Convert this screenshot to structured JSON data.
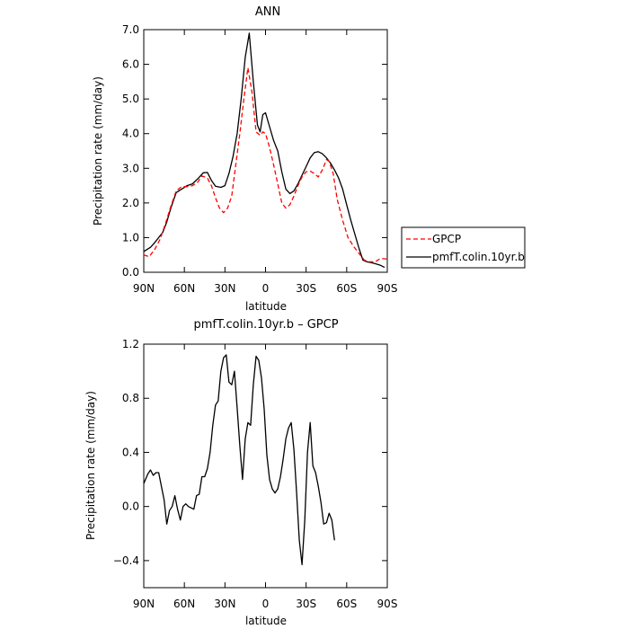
{
  "chart_data": [
    {
      "type": "line",
      "title": "ANN",
      "xlabel": "latitude",
      "ylabel": "Precipitation rate (mm/day)",
      "xlim": [
        90,
        -90
      ],
      "ylim": [
        0,
        7
      ],
      "xticks": [
        {
          "value": 90,
          "label": "90N"
        },
        {
          "value": 60,
          "label": "60N"
        },
        {
          "value": 30,
          "label": "30N"
        },
        {
          "value": 0,
          "label": "0"
        },
        {
          "value": -30,
          "label": "30S"
        },
        {
          "value": -60,
          "label": "60S"
        },
        {
          "value": -90,
          "label": "90S"
        }
      ],
      "yticks": [
        {
          "value": 0,
          "label": "0.0"
        },
        {
          "value": 1,
          "label": "1.0"
        },
        {
          "value": 2,
          "label": "2.0"
        },
        {
          "value": 3,
          "label": "3.0"
        },
        {
          "value": 4,
          "label": "4.0"
        },
        {
          "value": 5,
          "label": "5.0"
        },
        {
          "value": 6,
          "label": "6.0"
        },
        {
          "value": 7,
          "label": "7.0"
        }
      ],
      "legend": {
        "placement": "right",
        "entries": [
          {
            "name": "GPCP",
            "color": "#ff0000",
            "dash": "dashed"
          },
          {
            "name": "pmfT.colin.10yr.b",
            "color": "#000000",
            "dash": "solid"
          }
        ]
      },
      "series": [
        {
          "name": "pmfT.colin.10yr.b",
          "color": "#000000",
          "dash": "solid",
          "points": [
            [
              90,
              0.6
            ],
            [
              85,
              0.72
            ],
            [
              82,
              0.85
            ],
            [
              79,
              1.0
            ],
            [
              76,
              1.15
            ],
            [
              73,
              1.45
            ],
            [
              70,
              1.85
            ],
            [
              66,
              2.3
            ],
            [
              62,
              2.4
            ],
            [
              58,
              2.5
            ],
            [
              54,
              2.55
            ],
            [
              50,
              2.7
            ],
            [
              46,
              2.87
            ],
            [
              43,
              2.88
            ],
            [
              40,
              2.65
            ],
            [
              37,
              2.48
            ],
            [
              33,
              2.45
            ],
            [
              30,
              2.5
            ],
            [
              27,
              2.85
            ],
            [
              24,
              3.35
            ],
            [
              21,
              4.0
            ],
            [
              18,
              5.0
            ],
            [
              15,
              6.2
            ],
            [
              12,
              6.9
            ],
            [
              9,
              5.5
            ],
            [
              6,
              4.25
            ],
            [
              4,
              4.05
            ],
            [
              2,
              4.55
            ],
            [
              0,
              4.6
            ],
            [
              -3,
              4.2
            ],
            [
              -6,
              3.8
            ],
            [
              -9,
              3.5
            ],
            [
              -12,
              2.9
            ],
            [
              -15,
              2.4
            ],
            [
              -18,
              2.27
            ],
            [
              -21,
              2.35
            ],
            [
              -24,
              2.55
            ],
            [
              -27,
              2.8
            ],
            [
              -30,
              3.05
            ],
            [
              -33,
              3.3
            ],
            [
              -36,
              3.45
            ],
            [
              -39,
              3.48
            ],
            [
              -42,
              3.42
            ],
            [
              -45,
              3.3
            ],
            [
              -48,
              3.15
            ],
            [
              -51,
              2.95
            ],
            [
              -54,
              2.72
            ],
            [
              -57,
              2.4
            ],
            [
              -60,
              1.95
            ],
            [
              -63,
              1.5
            ],
            [
              -66,
              1.1
            ],
            [
              -69,
              0.7
            ],
            [
              -72,
              0.35
            ],
            [
              -75,
              0.3
            ],
            [
              -78,
              0.28
            ],
            [
              -81,
              0.25
            ],
            [
              -85,
              0.2
            ],
            [
              -88,
              0.14
            ]
          ]
        },
        {
          "name": "GPCP",
          "color": "#ff0000",
          "dash": "dashed",
          "points": [
            [
              90,
              0.5
            ],
            [
              86,
              0.45
            ],
            [
              82,
              0.65
            ],
            [
              78,
              0.95
            ],
            [
              74,
              1.4
            ],
            [
              70,
              1.9
            ],
            [
              66,
              2.35
            ],
            [
              62,
              2.47
            ],
            [
              58,
              2.47
            ],
            [
              54,
              2.5
            ],
            [
              50,
              2.6
            ],
            [
              47,
              2.78
            ],
            [
              43,
              2.72
            ],
            [
              40,
              2.5
            ],
            [
              37,
              2.15
            ],
            [
              34,
              1.85
            ],
            [
              31,
              1.72
            ],
            [
              28,
              1.85
            ],
            [
              25,
              2.2
            ],
            [
              22,
              3.1
            ],
            [
              19,
              4.0
            ],
            [
              16,
              5.0
            ],
            [
              13,
              5.9
            ],
            [
              10,
              5.2
            ],
            [
              7,
              4.05
            ],
            [
              4,
              3.95
            ],
            [
              2,
              4.05
            ],
            [
              0,
              4.0
            ],
            [
              -3,
              3.6
            ],
            [
              -6,
              3.1
            ],
            [
              -9,
              2.55
            ],
            [
              -12,
              2.0
            ],
            [
              -15,
              1.85
            ],
            [
              -18,
              1.95
            ],
            [
              -21,
              2.2
            ],
            [
              -24,
              2.5
            ],
            [
              -27,
              2.75
            ],
            [
              -30,
              2.9
            ],
            [
              -33,
              2.92
            ],
            [
              -36,
              2.85
            ],
            [
              -39,
              2.75
            ],
            [
              -42,
              2.95
            ],
            [
              -45,
              3.25
            ],
            [
              -47,
              3.2
            ],
            [
              -50,
              2.85
            ],
            [
              -53,
              2.1
            ],
            [
              -57,
              1.5
            ],
            [
              -61,
              1.0
            ],
            [
              -65,
              0.75
            ],
            [
              -69,
              0.55
            ],
            [
              -73,
              0.35
            ],
            [
              -77,
              0.3
            ],
            [
              -81,
              0.3
            ],
            [
              -85,
              0.4
            ],
            [
              -90,
              0.38
            ]
          ]
        }
      ]
    },
    {
      "type": "line",
      "title": "pmfT.colin.10yr.b – GPCP",
      "xlabel": "latitude",
      "ylabel": "Precipitation rate (mm/day)",
      "xlim": [
        90,
        -90
      ],
      "ylim": [
        -0.6,
        1.2
      ],
      "xticks": [
        {
          "value": 90,
          "label": "90N"
        },
        {
          "value": 60,
          "label": "60N"
        },
        {
          "value": 30,
          "label": "30N"
        },
        {
          "value": 0,
          "label": "0"
        },
        {
          "value": -30,
          "label": "30S"
        },
        {
          "value": -60,
          "label": "60S"
        },
        {
          "value": -90,
          "label": "90S"
        }
      ],
      "yticks": [
        {
          "value": -0.4,
          "label": "−0.4"
        },
        {
          "value": 0.0,
          "label": "0.0"
        },
        {
          "value": 0.4,
          "label": "0.4"
        },
        {
          "value": 0.8,
          "label": "0.8"
        },
        {
          "value": 1.2,
          "label": "1.2"
        }
      ],
      "series": [
        {
          "color": "#000000",
          "dash": "solid",
          "points": [
            [
              90,
              0.17
            ],
            [
              87,
              0.24
            ],
            [
              85,
              0.27
            ],
            [
              83,
              0.23
            ],
            [
              81,
              0.25
            ],
            [
              79,
              0.25
            ],
            [
              77,
              0.15
            ],
            [
              75,
              0.05
            ],
            [
              73,
              -0.13
            ],
            [
              71,
              -0.03
            ],
            [
              69,
              0.0
            ],
            [
              67,
              0.08
            ],
            [
              65,
              -0.02
            ],
            [
              63,
              -0.1
            ],
            [
              61,
              0.0
            ],
            [
              59,
              0.02
            ],
            [
              57,
              0.0
            ],
            [
              55,
              -0.01
            ],
            [
              53,
              -0.02
            ],
            [
              51,
              0.08
            ],
            [
              49,
              0.09
            ],
            [
              47,
              0.22
            ],
            [
              45,
              0.22
            ],
            [
              43,
              0.28
            ],
            [
              41,
              0.4
            ],
            [
              39,
              0.6
            ],
            [
              37,
              0.75
            ],
            [
              35,
              0.78
            ],
            [
              33,
              1.0
            ],
            [
              31,
              1.1
            ],
            [
              29,
              1.12
            ],
            [
              27,
              0.92
            ],
            [
              25,
              0.9
            ],
            [
              23,
              1.0
            ],
            [
              21,
              0.73
            ],
            [
              19,
              0.45
            ],
            [
              17,
              0.2
            ],
            [
              15,
              0.5
            ],
            [
              13,
              0.62
            ],
            [
              11,
              0.6
            ],
            [
              9,
              0.9
            ],
            [
              7,
              1.11
            ],
            [
              5,
              1.08
            ],
            [
              3,
              0.95
            ],
            [
              1,
              0.72
            ],
            [
              -1,
              0.38
            ],
            [
              -3,
              0.2
            ],
            [
              -5,
              0.13
            ],
            [
              -7,
              0.1
            ],
            [
              -9,
              0.13
            ],
            [
              -11,
              0.22
            ],
            [
              -13,
              0.35
            ],
            [
              -15,
              0.5
            ],
            [
              -17,
              0.58
            ],
            [
              -19,
              0.62
            ],
            [
              -21,
              0.42
            ],
            [
              -23,
              0.1
            ],
            [
              -25,
              -0.25
            ],
            [
              -27,
              -0.43
            ],
            [
              -29,
              -0.1
            ],
            [
              -31,
              0.4
            ],
            [
              -33,
              0.62
            ],
            [
              -35,
              0.3
            ],
            [
              -37,
              0.25
            ],
            [
              -39,
              0.15
            ],
            [
              -41,
              0.03
            ],
            [
              -43,
              -0.13
            ],
            [
              -45,
              -0.12
            ],
            [
              -47,
              -0.05
            ],
            [
              -49,
              -0.1
            ],
            [
              -51,
              -0.25
            ]
          ]
        }
      ]
    }
  ]
}
